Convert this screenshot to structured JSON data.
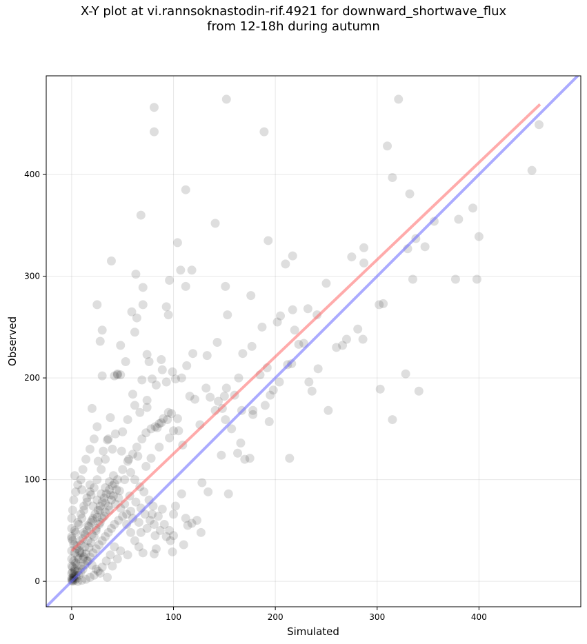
{
  "chart_data": {
    "type": "scatter",
    "title_lines": [
      "X-Y plot at vi.rannsoknastodin-rif.4921 for downward_shortwave_flux",
      "from 12-18h during autumn"
    ],
    "xlabel": "Simulated",
    "ylabel": "Observed",
    "xlim": [
      -25,
      500
    ],
    "ylim": [
      -25,
      497
    ],
    "xticks": [
      0,
      100,
      200,
      300,
      400
    ],
    "yticks": [
      0,
      100,
      200,
      300,
      400
    ],
    "grid": true,
    "lines": [
      {
        "role": "regression",
        "color": "#ff6666",
        "x": [
          0,
          460
        ],
        "y": [
          30,
          469
        ]
      },
      {
        "role": "identity",
        "color": "#6666ff",
        "x": [
          -25,
          500
        ],
        "y": [
          -25,
          500
        ]
      }
    ],
    "points": [
      [
        81,
        466
      ],
      [
        152,
        474
      ],
      [
        81,
        442
      ],
      [
        189,
        442
      ],
      [
        321,
        474
      ],
      [
        459,
        449
      ],
      [
        452,
        404
      ],
      [
        310,
        428
      ],
      [
        315,
        397
      ],
      [
        332,
        381
      ],
      [
        112,
        385
      ],
      [
        68,
        360
      ],
      [
        141,
        352
      ],
      [
        104,
        333
      ],
      [
        193,
        335
      ],
      [
        39,
        315
      ],
      [
        63,
        302
      ],
      [
        107,
        306
      ],
      [
        118,
        306
      ],
      [
        96,
        296
      ],
      [
        70,
        289
      ],
      [
        112,
        290
      ],
      [
        151,
        290
      ],
      [
        176,
        281
      ],
      [
        210,
        312
      ],
      [
        217,
        320
      ],
      [
        250,
        293
      ],
      [
        275,
        319
      ],
      [
        287,
        328
      ],
      [
        287,
        313
      ],
      [
        330,
        327
      ],
      [
        338,
        337
      ],
      [
        347,
        329
      ],
      [
        356,
        354
      ],
      [
        380,
        356
      ],
      [
        394,
        367
      ],
      [
        400,
        339
      ],
      [
        377,
        297
      ],
      [
        398,
        297
      ],
      [
        335,
        297
      ],
      [
        25,
        272
      ],
      [
        70,
        272
      ],
      [
        93,
        270
      ],
      [
        59,
        265
      ],
      [
        64,
        259
      ],
      [
        95,
        262
      ],
      [
        153,
        262
      ],
      [
        30,
        247
      ],
      [
        62,
        245
      ],
      [
        223,
        233
      ],
      [
        202,
        255
      ],
      [
        205,
        261
      ],
      [
        217,
        267
      ],
      [
        232,
        268
      ],
      [
        241,
        262
      ],
      [
        260,
        230
      ],
      [
        266,
        232
      ],
      [
        270,
        238
      ],
      [
        281,
        248
      ],
      [
        286,
        238
      ],
      [
        302,
        272
      ],
      [
        306,
        273
      ],
      [
        328,
        204
      ],
      [
        341,
        187
      ],
      [
        303,
        189
      ],
      [
        315,
        159
      ],
      [
        252,
        168
      ],
      [
        214,
        121
      ],
      [
        154,
        86
      ],
      [
        118,
        57
      ],
      [
        28,
        236
      ],
      [
        48,
        232
      ],
      [
        74,
        223
      ],
      [
        76,
        216
      ],
      [
        88,
        218
      ],
      [
        99,
        206
      ],
      [
        102,
        199
      ],
      [
        113,
        212
      ],
      [
        119,
        224
      ],
      [
        133,
        222
      ],
      [
        143,
        235
      ],
      [
        144,
        177
      ],
      [
        150,
        182
      ],
      [
        152,
        190
      ],
      [
        164,
        200
      ],
      [
        167,
        168
      ],
      [
        168,
        224
      ],
      [
        177,
        231
      ],
      [
        178,
        168
      ],
      [
        187,
        250
      ],
      [
        190,
        173
      ],
      [
        192,
        210
      ],
      [
        195,
        183
      ],
      [
        198,
        188
      ],
      [
        204,
        196
      ],
      [
        212,
        213
      ],
      [
        216,
        214
      ],
      [
        219,
        247
      ],
      [
        228,
        234
      ],
      [
        242,
        209
      ],
      [
        233,
        196
      ],
      [
        236,
        187
      ],
      [
        30,
        202
      ],
      [
        45,
        203
      ],
      [
        48,
        203
      ],
      [
        53,
        216
      ],
      [
        60,
        184
      ],
      [
        69,
        198
      ],
      [
        74,
        178
      ],
      [
        79,
        199
      ],
      [
        83,
        193
      ],
      [
        89,
        208
      ],
      [
        93,
        196
      ],
      [
        98,
        165
      ],
      [
        104,
        160
      ],
      [
        108,
        200
      ],
      [
        116,
        182
      ],
      [
        121,
        179
      ],
      [
        126,
        154
      ],
      [
        132,
        190
      ],
      [
        136,
        181
      ],
      [
        141,
        168
      ],
      [
        148,
        170
      ],
      [
        151,
        159
      ],
      [
        157,
        150
      ],
      [
        160,
        183
      ],
      [
        166,
        136
      ],
      [
        163,
        126
      ],
      [
        170,
        120
      ],
      [
        175,
        121
      ],
      [
        178,
        164
      ],
      [
        185,
        203
      ],
      [
        194,
        157
      ],
      [
        147,
        124
      ],
      [
        128,
        97
      ],
      [
        134,
        88
      ],
      [
        108,
        86
      ],
      [
        102,
        74
      ],
      [
        89,
        71
      ],
      [
        79,
        66
      ],
      [
        100,
        66
      ],
      [
        112,
        62
      ],
      [
        114,
        55
      ],
      [
        123,
        60
      ],
      [
        127,
        48
      ],
      [
        110,
        36
      ],
      [
        99,
        29
      ],
      [
        81,
        27
      ],
      [
        83,
        32
      ],
      [
        68,
        48
      ],
      [
        58,
        69
      ],
      [
        42,
        202
      ],
      [
        45,
        204
      ],
      [
        38,
        161
      ],
      [
        50,
        147
      ],
      [
        55,
        159
      ],
      [
        62,
        173
      ],
      [
        67,
        166
      ],
      [
        74,
        171
      ],
      [
        84,
        151
      ],
      [
        88,
        156
      ],
      [
        94,
        159
      ],
      [
        100,
        148
      ],
      [
        105,
        148
      ],
      [
        109,
        134
      ],
      [
        96,
        141
      ],
      [
        86,
        132
      ],
      [
        78,
        121
      ],
      [
        73,
        113
      ],
      [
        65,
        123
      ],
      [
        58,
        107
      ],
      [
        52,
        100
      ],
      [
        47,
        89
      ],
      [
        42,
        96
      ],
      [
        38,
        85
      ],
      [
        33,
        77
      ],
      [
        28,
        70
      ],
      [
        25,
        63
      ],
      [
        20,
        60
      ],
      [
        16,
        55
      ],
      [
        12,
        48
      ],
      [
        8,
        40
      ],
      [
        5,
        35
      ],
      [
        3,
        28
      ],
      [
        2,
        20
      ],
      [
        1,
        14
      ],
      [
        0,
        8
      ],
      [
        0,
        3
      ],
      [
        1,
        1
      ],
      [
        2,
        2
      ],
      [
        4,
        6
      ],
      [
        6,
        10
      ],
      [
        9,
        15
      ],
      [
        11,
        22
      ],
      [
        14,
        27
      ],
      [
        17,
        33
      ],
      [
        19,
        38
      ],
      [
        22,
        44
      ],
      [
        24,
        50
      ],
      [
        27,
        56
      ],
      [
        30,
        62
      ],
      [
        33,
        68
      ],
      [
        36,
        74
      ],
      [
        39,
        80
      ],
      [
        41,
        84
      ],
      [
        44,
        90
      ],
      [
        35,
        139
      ],
      [
        40,
        130
      ],
      [
        33,
        120
      ],
      [
        29,
        110
      ],
      [
        25,
        100
      ],
      [
        22,
        92
      ],
      [
        19,
        85
      ],
      [
        15,
        78
      ],
      [
        12,
        70
      ],
      [
        10,
        62
      ],
      [
        7,
        56
      ],
      [
        4,
        48
      ],
      [
        3,
        104
      ],
      [
        10,
        90
      ],
      [
        18,
        95
      ],
      [
        26,
        118
      ],
      [
        31,
        128
      ],
      [
        36,
        140
      ],
      [
        43,
        145
      ],
      [
        49,
        128
      ],
      [
        56,
        120
      ],
      [
        62,
        100
      ],
      [
        67,
        93
      ],
      [
        71,
        88
      ],
      [
        76,
        80
      ],
      [
        80,
        74
      ],
      [
        85,
        64
      ],
      [
        91,
        56
      ],
      [
        96,
        50
      ],
      [
        100,
        45
      ],
      [
        82,
        45
      ],
      [
        74,
        52
      ],
      [
        66,
        58
      ],
      [
        60,
        62
      ],
      [
        54,
        66
      ],
      [
        48,
        72
      ],
      [
        43,
        76
      ],
      [
        37,
        70
      ],
      [
        32,
        64
      ],
      [
        28,
        58
      ],
      [
        24,
        52
      ],
      [
        20,
        46
      ],
      [
        16,
        40
      ],
      [
        13,
        34
      ],
      [
        10,
        28
      ],
      [
        7,
        22
      ],
      [
        5,
        16
      ],
      [
        3,
        10
      ],
      [
        2,
        5
      ],
      [
        1,
        0
      ],
      [
        0,
        1
      ],
      [
        1,
        3
      ],
      [
        2,
        7
      ],
      [
        3,
        12
      ],
      [
        4,
        18
      ],
      [
        6,
        24
      ],
      [
        8,
        30
      ],
      [
        9,
        36
      ],
      [
        11,
        42
      ],
      [
        13,
        46
      ],
      [
        15,
        50
      ],
      [
        17,
        54
      ],
      [
        19,
        58
      ],
      [
        21,
        62
      ],
      [
        23,
        66
      ],
      [
        26,
        70
      ],
      [
        28,
        74
      ],
      [
        30,
        78
      ],
      [
        32,
        82
      ],
      [
        34,
        86
      ],
      [
        37,
        90
      ],
      [
        40,
        94
      ],
      [
        45,
        100
      ],
      [
        50,
        110
      ],
      [
        55,
        118
      ],
      [
        60,
        125
      ],
      [
        64,
        132
      ],
      [
        69,
        140
      ],
      [
        73,
        146
      ],
      [
        78,
        150
      ],
      [
        82,
        152
      ],
      [
        86,
        155
      ],
      [
        90,
        160
      ],
      [
        95,
        166
      ],
      [
        20,
        170
      ],
      [
        25,
        152
      ],
      [
        22,
        140
      ],
      [
        18,
        130
      ],
      [
        14,
        120
      ],
      [
        11,
        110
      ],
      [
        9,
        100
      ],
      [
        6,
        95
      ],
      [
        4,
        88
      ],
      [
        2,
        80
      ],
      [
        1,
        70
      ],
      [
        0,
        62
      ],
      [
        0,
        52
      ],
      [
        0,
        42
      ],
      [
        0,
        30
      ],
      [
        0,
        22
      ],
      [
        0,
        15
      ],
      [
        1,
        9
      ],
      [
        2,
        4
      ],
      [
        3,
        1
      ],
      [
        5,
        3
      ],
      [
        7,
        6
      ],
      [
        9,
        9
      ],
      [
        11,
        12
      ],
      [
        13,
        16
      ],
      [
        15,
        20
      ],
      [
        18,
        24
      ],
      [
        21,
        28
      ],
      [
        24,
        32
      ],
      [
        27,
        36
      ],
      [
        30,
        40
      ],
      [
        33,
        44
      ],
      [
        36,
        48
      ],
      [
        39,
        52
      ],
      [
        42,
        56
      ],
      [
        46,
        60
      ],
      [
        50,
        64
      ],
      [
        54,
        56
      ],
      [
        58,
        48
      ],
      [
        62,
        40
      ],
      [
        66,
        34
      ],
      [
        70,
        28
      ],
      [
        55,
        26
      ],
      [
        48,
        30
      ],
      [
        42,
        34
      ],
      [
        38,
        26
      ],
      [
        34,
        20
      ],
      [
        30,
        14
      ],
      [
        26,
        10
      ],
      [
        22,
        6
      ],
      [
        18,
        4
      ],
      [
        14,
        2
      ],
      [
        10,
        1
      ],
      [
        6,
        0
      ],
      [
        40,
        15
      ],
      [
        45,
        22
      ],
      [
        35,
        4
      ],
      [
        28,
        8
      ],
      [
        24,
        12
      ],
      [
        20,
        16
      ],
      [
        16,
        20
      ],
      [
        12,
        24
      ],
      [
        8,
        28
      ],
      [
        5,
        32
      ],
      [
        2,
        36
      ],
      [
        1,
        40
      ],
      [
        0,
        44
      ],
      [
        3,
        50
      ],
      [
        6,
        58
      ],
      [
        9,
        66
      ],
      [
        12,
        74
      ],
      [
        15,
        82
      ],
      [
        18,
        88
      ],
      [
        21,
        74
      ],
      [
        25,
        80
      ],
      [
        29,
        86
      ],
      [
        33,
        92
      ],
      [
        37,
        98
      ],
      [
        41,
        104
      ],
      [
        46,
        82
      ],
      [
        52,
        76
      ],
      [
        57,
        84
      ],
      [
        63,
        78
      ],
      [
        68,
        72
      ],
      [
        72,
        66
      ],
      [
        77,
        60
      ],
      [
        81,
        56
      ],
      [
        87,
        50
      ],
      [
        93,
        44
      ],
      [
        97,
        40
      ]
    ]
  }
}
